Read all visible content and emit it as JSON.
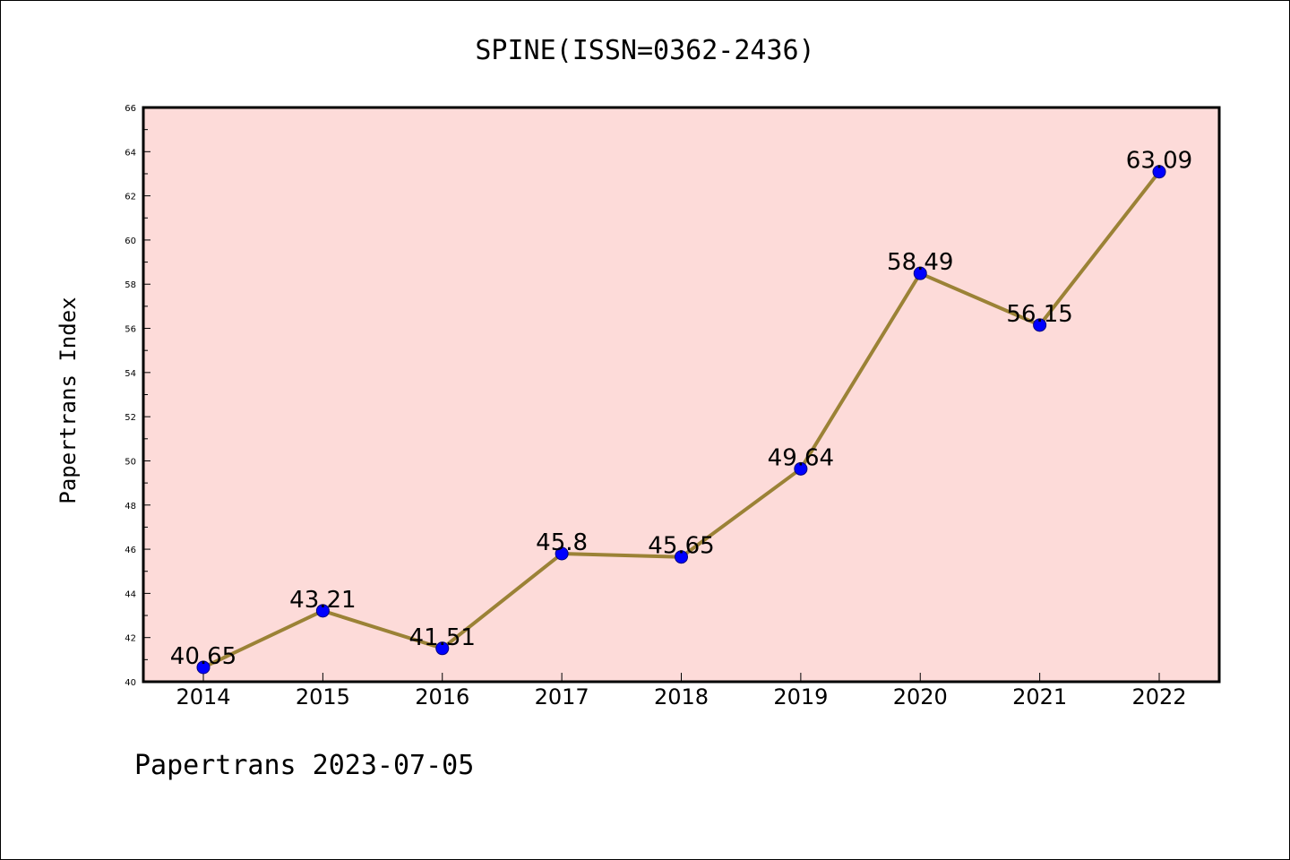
{
  "chart_data": {
    "type": "line",
    "title": "SPINE(ISSN=0362-2436)",
    "xlabel": "",
    "ylabel": "Papertrans Index",
    "footer": "Papertrans 2023-07-05",
    "categories": [
      "2014",
      "2015",
      "2016",
      "2017",
      "2018",
      "2019",
      "2020",
      "2021",
      "2022"
    ],
    "series": [
      {
        "values": [
          40.65,
          43.21,
          41.51,
          45.8,
          45.65,
          49.64,
          58.49,
          56.15,
          63.09
        ],
        "labels": [
          "40.65",
          "43.21",
          "41.51",
          "45.8",
          "45.65",
          "49.64",
          "58.49",
          "56.15",
          "63.09"
        ]
      }
    ],
    "ylim": [
      40,
      66
    ],
    "yticks": [
      "40",
      "42",
      "44",
      "46",
      "48",
      "50",
      "52",
      "54",
      "56",
      "58",
      "60",
      "62",
      "64",
      "66"
    ],
    "grid": false,
    "legend": "none",
    "colors": {
      "plot_background": "#fddbd9",
      "line": "#9b8236",
      "marker": "#0000ff",
      "marker_edge": "#000080",
      "axes": "#000000"
    }
  }
}
